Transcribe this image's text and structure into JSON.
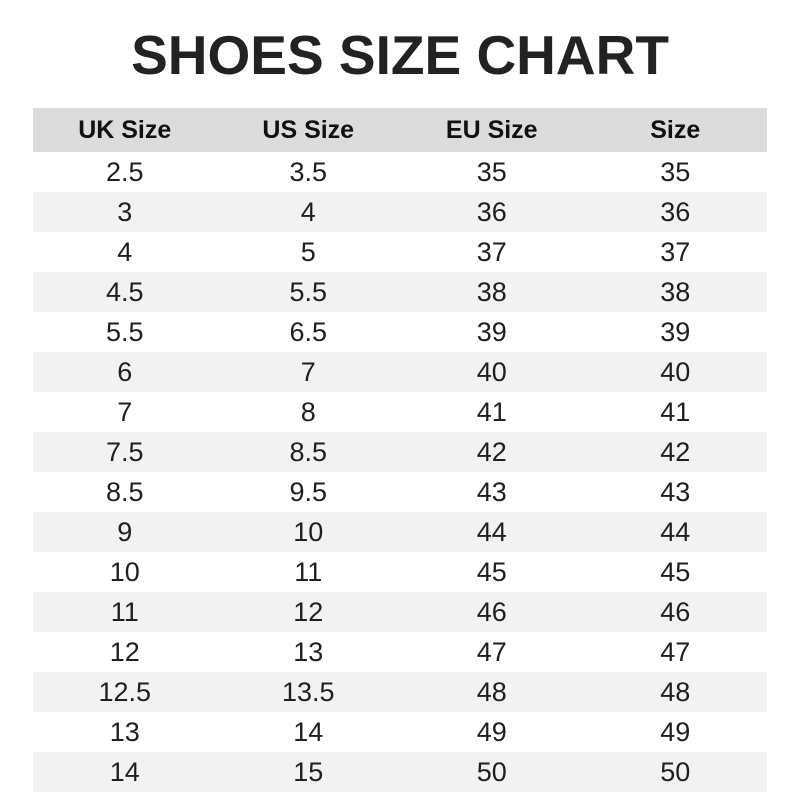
{
  "page": {
    "title": "SHOES SIZE CHART"
  },
  "colors": {
    "header_bg": "#dcdcdc",
    "row_alt_bg": "#f2f2f2",
    "row_bg": "#ffffff",
    "title_text": "#222222",
    "cell_text": "#1f1f1f"
  },
  "chart_data": {
    "type": "table",
    "title": "SHOES SIZE CHART",
    "columns": [
      "UK Size",
      "US Size",
      "EU Size",
      "Size"
    ],
    "rows": [
      [
        "2.5",
        "3.5",
        "35",
        "35"
      ],
      [
        "3",
        "4",
        "36",
        "36"
      ],
      [
        "4",
        "5",
        "37",
        "37"
      ],
      [
        "4.5",
        "5.5",
        "38",
        "38"
      ],
      [
        "5.5",
        "6.5",
        "39",
        "39"
      ],
      [
        "6",
        "7",
        "40",
        "40"
      ],
      [
        "7",
        "8",
        "41",
        "41"
      ],
      [
        "7.5",
        "8.5",
        "42",
        "42"
      ],
      [
        "8.5",
        "9.5",
        "43",
        "43"
      ],
      [
        "9",
        "10",
        "44",
        "44"
      ],
      [
        "10",
        "11",
        "45",
        "45"
      ],
      [
        "11",
        "12",
        "46",
        "46"
      ],
      [
        "12",
        "13",
        "47",
        "47"
      ],
      [
        "12.5",
        "13.5",
        "48",
        "48"
      ],
      [
        "13",
        "14",
        "49",
        "49"
      ],
      [
        "14",
        "15",
        "50",
        "50"
      ]
    ],
    "layout": {
      "striped": true,
      "first_data_row_background": "white",
      "header_background": "gray"
    }
  }
}
